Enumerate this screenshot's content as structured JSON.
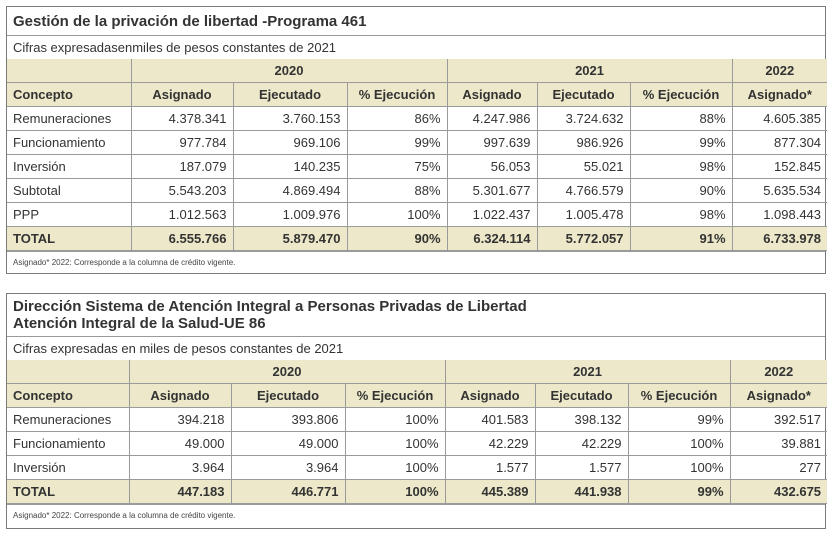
{
  "table1": {
    "title": "Gestión de la privación de libertad -Programa 461",
    "subtitle": "Cifras expresadasenmiles de pesos constantes de 2021",
    "years": [
      "2020",
      "2021",
      "2022"
    ],
    "columns": [
      "Concepto",
      "Asignado",
      "Ejecutado",
      "% Ejecución",
      "Asignado",
      "Ejecutado",
      "% Ejecución",
      "Asignado*"
    ],
    "rows": [
      [
        "Remuneraciones",
        "4.378.341",
        "3.760.153",
        "86%",
        "4.247.986",
        "3.724.632",
        "88%",
        "4.605.385"
      ],
      [
        "Funcionamiento",
        "977.784",
        "969.106",
        "99%",
        "997.639",
        "986.926",
        "99%",
        "877.304"
      ],
      [
        "Inversión",
        "187.079",
        "140.235",
        "75%",
        "56.053",
        "55.021",
        "98%",
        "152.845"
      ],
      [
        "Subtotal",
        "5.543.203",
        "4.869.494",
        "88%",
        "5.301.677",
        "4.766.579",
        "90%",
        "5.635.534"
      ],
      [
        "PPP",
        "1.012.563",
        "1.009.976",
        "100%",
        "1.022.437",
        "1.005.478",
        "98%",
        "1.098.443"
      ]
    ],
    "total": [
      "TOTAL",
      "6.555.766",
      "5.879.470",
      "90%",
      "6.324.114",
      "5.772.057",
      "91%",
      "6.733.978"
    ],
    "note": "Asignado* 2022: Corresponde a la columna de crédito vigente."
  },
  "table2": {
    "title_line1": "Dirección Sistema de Atención Integral a Personas Privadas de Libertad",
    "title_line2": "Atención Integral de la Salud-UE 86",
    "subtitle": "Cifras expresadas en miles de pesos constantes de 2021",
    "years": [
      "2020",
      "2021",
      "2022"
    ],
    "columns": [
      "Concepto",
      "Asignado",
      "Ejecutado",
      "% Ejecución",
      "Asignado",
      "Ejecutado",
      "% Ejecución",
      "Asignado*"
    ],
    "rows": [
      [
        "Remuneraciones",
        "394.218",
        "393.806",
        "100%",
        "401.583",
        "398.132",
        "99%",
        "392.517"
      ],
      [
        "Funcionamiento",
        "49.000",
        "49.000",
        "100%",
        "42.229",
        "42.229",
        "100%",
        "39.881"
      ],
      [
        "Inversión",
        "3.964",
        "3.964",
        "100%",
        "1.577",
        "1.577",
        "100%",
        "277"
      ]
    ],
    "total": [
      "TOTAL",
      "447.183",
      "446.771",
      "100%",
      "445.389",
      "441.938",
      "99%",
      "432.675"
    ],
    "note": "Asignado* 2022: Corresponde a la columna de crédito vigente."
  }
}
